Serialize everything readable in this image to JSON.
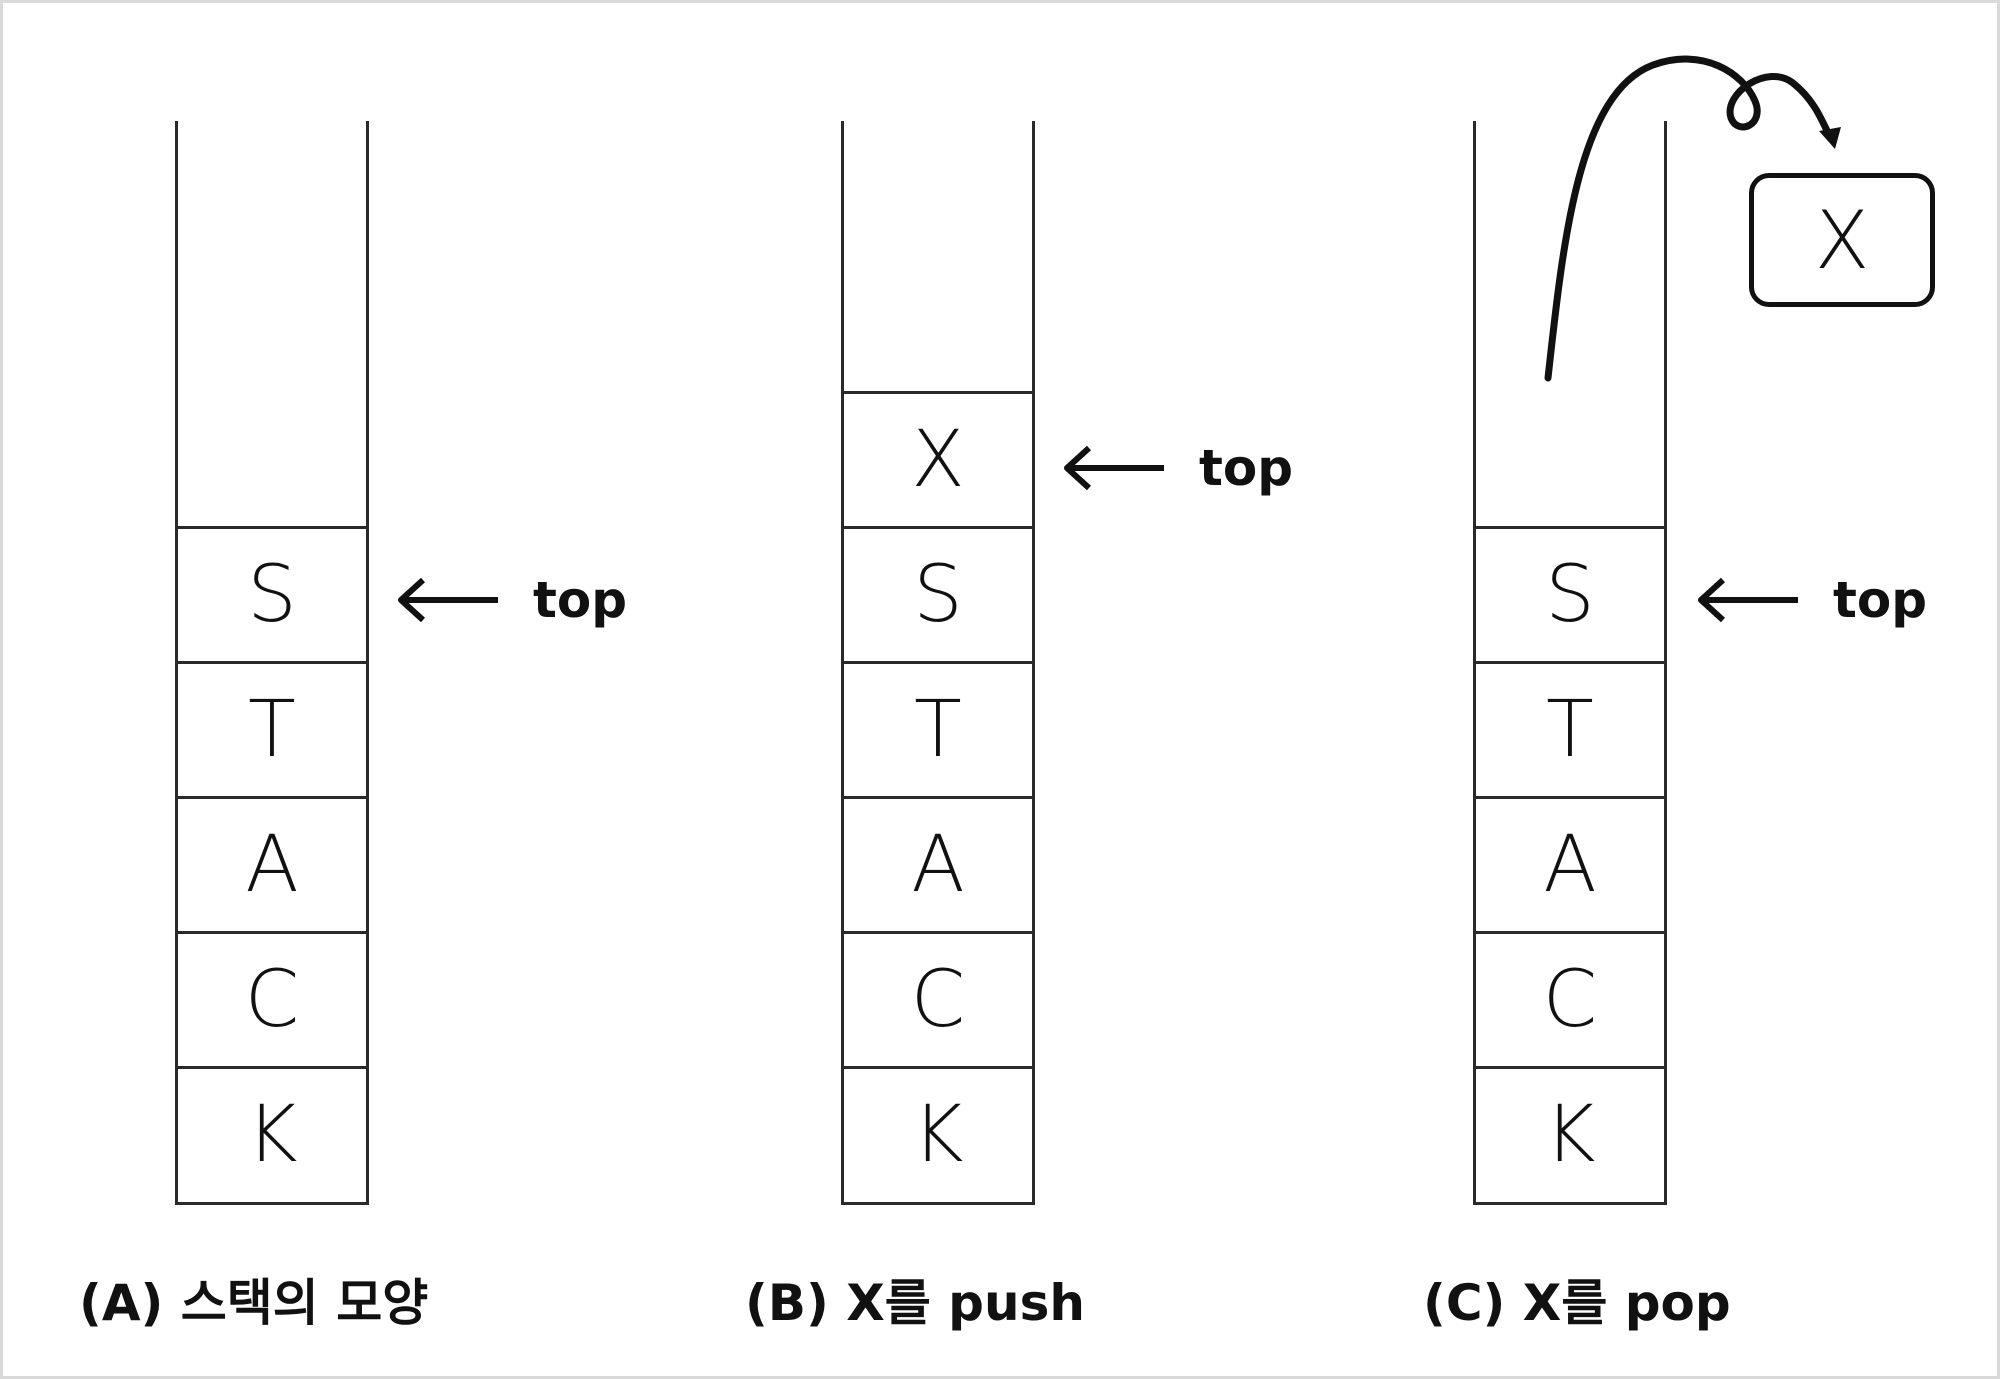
{
  "top_label": "top",
  "panels": [
    {
      "caption": "(A) 스택의 모양",
      "cells": [
        "S",
        "T",
        "A",
        "C",
        "K"
      ],
      "top_element": "S"
    },
    {
      "caption": "(B) X를 push",
      "cells": [
        "X",
        "S",
        "T",
        "A",
        "C",
        "K"
      ],
      "top_element": "X"
    },
    {
      "caption": "(C) X를 pop",
      "cells": [
        "S",
        "T",
        "A",
        "C",
        "K"
      ],
      "top_element": "S",
      "popped": "X"
    }
  ]
}
